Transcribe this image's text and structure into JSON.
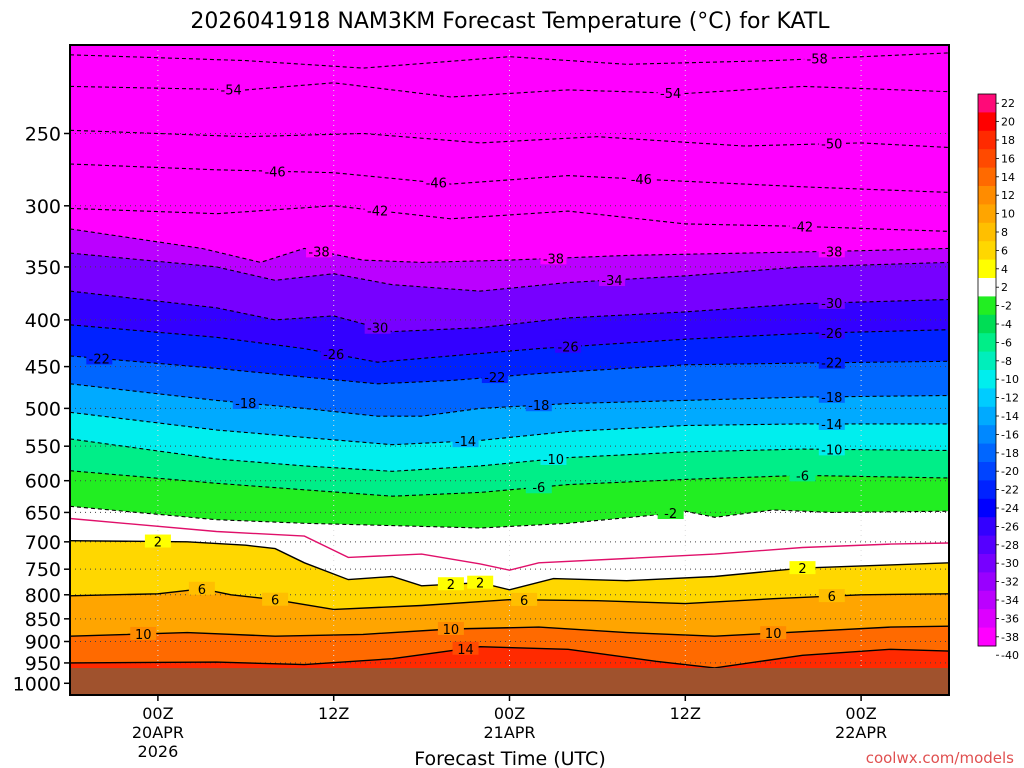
{
  "chart_data": {
    "type": "heatmap",
    "title": "2026041918 NAM3KM Forecast Temperature (°C) for KATL",
    "xlabel": "Forecast Time (UTC)",
    "ylabel": "",
    "credit": "coolwx.com/models",
    "y_axis": {
      "scale": "log",
      "range_hpa": [
        1030,
        200
      ],
      "ticks": [
        "250",
        "300",
        "350",
        "400",
        "450",
        "500",
        "550",
        "600",
        "650",
        "700",
        "750",
        "800",
        "850",
        "900",
        "950",
        "1000"
      ],
      "tick_values": [
        250,
        300,
        350,
        400,
        450,
        500,
        550,
        600,
        650,
        700,
        750,
        800,
        850,
        900,
        950,
        1000
      ]
    },
    "x_axis": {
      "range_hours": [
        -6,
        54
      ],
      "ticks": [
        {
          "hour": 0,
          "line1": "00Z",
          "line2": "20APR",
          "line3": "2026"
        },
        {
          "hour": 12,
          "line1": "12Z",
          "line2": "",
          "line3": ""
        },
        {
          "hour": 24,
          "line1": "00Z",
          "line2": "21APR",
          "line3": ""
        },
        {
          "hour": 36,
          "line1": "12Z",
          "line2": "",
          "line3": ""
        },
        {
          "hour": 48,
          "line1": "00Z",
          "line2": "22APR",
          "line3": ""
        }
      ]
    },
    "colorbar": {
      "levels": [
        "22",
        "20",
        "18",
        "16",
        "14",
        "12",
        "10",
        "8",
        "6",
        "4",
        "2",
        "-2",
        "-4",
        "-6",
        "-8",
        "-10",
        "-12",
        "-14",
        "-16",
        "-18",
        "-20",
        "-22",
        "-24",
        "-26",
        "-28",
        "-30",
        "-32",
        "-34",
        "-36",
        "-38",
        "-40"
      ],
      "colors": [
        "#ff0a78",
        "#ff0000",
        "#ff2a00",
        "#ff4a00",
        "#ff6a00",
        "#ff8c00",
        "#ffa500",
        "#ffbf00",
        "#ffd700",
        "#ffff00",
        "#ffffff",
        "#22ee22",
        "#00dd55",
        "#00ee88",
        "#00eebb",
        "#00eeee",
        "#00ccff",
        "#00aaff",
        "#0088ff",
        "#0066ff",
        "#0044ff",
        "#0022ff",
        "#0000ff",
        "#3300ff",
        "#5500ff",
        "#7700ff",
        "#9900ff",
        "#bb00ff",
        "#dd00ff",
        "#ff00ff"
      ]
    },
    "ground_color": "#a0522d",
    "isotherms": [
      {
        "temp": -58,
        "label": "-58",
        "pts": [
          [
            -6,
            205
          ],
          [
            6,
            208
          ],
          [
            14,
            212
          ],
          [
            24,
            206
          ],
          [
            32,
            210
          ],
          [
            42,
            208
          ],
          [
            54,
            204
          ]
        ]
      },
      {
        "temp": -54,
        "label": "-54",
        "pts": [
          [
            -6,
            222
          ],
          [
            6,
            224
          ],
          [
            12,
            220
          ],
          [
            20,
            228
          ],
          [
            28,
            224
          ],
          [
            36,
            226
          ],
          [
            44,
            222
          ],
          [
            54,
            225
          ]
        ]
      },
      {
        "temp": -50,
        "label": "-50",
        "pts": [
          [
            -6,
            248
          ],
          [
            6,
            252
          ],
          [
            14,
            250
          ],
          [
            22,
            256
          ],
          [
            30,
            252
          ],
          [
            40,
            258
          ],
          [
            48,
            256
          ],
          [
            54,
            259
          ]
        ]
      },
      {
        "temp": -46,
        "label": "-46",
        "pts": [
          [
            -6,
            270
          ],
          [
            4,
            274
          ],
          [
            12,
            276
          ],
          [
            20,
            284
          ],
          [
            28,
            278
          ],
          [
            36,
            282
          ],
          [
            44,
            286
          ],
          [
            54,
            290
          ]
        ]
      },
      {
        "temp": -42,
        "label": "-42",
        "pts": [
          [
            -6,
            302
          ],
          [
            4,
            306
          ],
          [
            12,
            300
          ],
          [
            20,
            310
          ],
          [
            28,
            304
          ],
          [
            36,
            314
          ],
          [
            44,
            316
          ],
          [
            54,
            320
          ]
        ]
      },
      {
        "temp": -38,
        "label": "-38",
        "pts": [
          [
            -6,
            318
          ],
          [
            3,
            334
          ],
          [
            7,
            346
          ],
          [
            10,
            334
          ],
          [
            14,
            344
          ],
          [
            18,
            346
          ],
          [
            24,
            344
          ],
          [
            32,
            340
          ],
          [
            40,
            338
          ],
          [
            48,
            336
          ],
          [
            54,
            334
          ]
        ]
      },
      {
        "temp": -34,
        "label": "-34",
        "pts": [
          [
            -6,
            338
          ],
          [
            4,
            350
          ],
          [
            8,
            362
          ],
          [
            12,
            356
          ],
          [
            16,
            366
          ],
          [
            22,
            372
          ],
          [
            28,
            364
          ],
          [
            36,
            358
          ],
          [
            44,
            350
          ],
          [
            54,
            346
          ]
        ]
      },
      {
        "temp": -30,
        "label": "-30",
        "pts": [
          [
            -6,
            372
          ],
          [
            4,
            388
          ],
          [
            8,
            400
          ],
          [
            12,
            396
          ],
          [
            16,
            412
          ],
          [
            22,
            408
          ],
          [
            28,
            398
          ],
          [
            36,
            392
          ],
          [
            44,
            384
          ],
          [
            54,
            380
          ]
        ]
      },
      {
        "temp": -26,
        "label": "-26",
        "pts": [
          [
            -6,
            405
          ],
          [
            4,
            418
          ],
          [
            10,
            430
          ],
          [
            15,
            445
          ],
          [
            20,
            438
          ],
          [
            26,
            430
          ],
          [
            36,
            420
          ],
          [
            44,
            414
          ],
          [
            54,
            410
          ]
        ]
      },
      {
        "temp": -22,
        "label": "-22",
        "pts": [
          [
            -6,
            438
          ],
          [
            4,
            452
          ],
          [
            10,
            462
          ],
          [
            15,
            470
          ],
          [
            20,
            466
          ],
          [
            26,
            458
          ],
          [
            36,
            448
          ],
          [
            44,
            446
          ],
          [
            54,
            444
          ]
        ]
      },
      {
        "temp": -18,
        "label": "-18",
        "pts": [
          [
            -6,
            470
          ],
          [
            4,
            490
          ],
          [
            10,
            500
          ],
          [
            15,
            510
          ],
          [
            18,
            510
          ],
          [
            22,
            500
          ],
          [
            28,
            494
          ],
          [
            36,
            490
          ],
          [
            44,
            486
          ],
          [
            54,
            484
          ]
        ]
      },
      {
        "temp": -14,
        "label": "-14",
        "pts": [
          [
            -6,
            505
          ],
          [
            4,
            528
          ],
          [
            10,
            538
          ],
          [
            16,
            548
          ],
          [
            22,
            542
          ],
          [
            28,
            530
          ],
          [
            36,
            522
          ],
          [
            44,
            520
          ],
          [
            54,
            520
          ]
        ]
      },
      {
        "temp": -10,
        "label": "-10",
        "pts": [
          [
            -6,
            540
          ],
          [
            4,
            568
          ],
          [
            10,
            578
          ],
          [
            16,
            586
          ],
          [
            22,
            578
          ],
          [
            28,
            566
          ],
          [
            36,
            558
          ],
          [
            44,
            554
          ],
          [
            54,
            556
          ]
        ]
      },
      {
        "temp": -6,
        "label": "-6",
        "pts": [
          [
            -6,
            585
          ],
          [
            4,
            604
          ],
          [
            10,
            614
          ],
          [
            16,
            624
          ],
          [
            22,
            618
          ],
          [
            28,
            606
          ],
          [
            36,
            598
          ],
          [
            44,
            592
          ],
          [
            54,
            596
          ]
        ]
      },
      {
        "temp": -2,
        "label": "-2",
        "pts": [
          [
            -6,
            640
          ],
          [
            4,
            662
          ],
          [
            10,
            668
          ],
          [
            16,
            672
          ],
          [
            22,
            676
          ],
          [
            28,
            668
          ],
          [
            34,
            654
          ],
          [
            36,
            648
          ],
          [
            38,
            658
          ],
          [
            42,
            646
          ],
          [
            46,
            650
          ],
          [
            54,
            648
          ]
        ]
      },
      {
        "temp": 2,
        "label": "2",
        "pts": [
          [
            -6,
            698
          ],
          [
            2,
            700
          ],
          [
            6,
            706
          ],
          [
            8,
            712
          ],
          [
            10,
            738
          ],
          [
            13,
            770
          ],
          [
            16,
            764
          ],
          [
            18,
            782
          ],
          [
            22,
            776
          ],
          [
            24,
            790
          ],
          [
            27,
            768
          ],
          [
            32,
            772
          ],
          [
            38,
            764
          ],
          [
            44,
            748
          ],
          [
            50,
            742
          ],
          [
            54,
            738
          ]
        ]
      },
      {
        "temp": 6,
        "label": "6",
        "pts": [
          [
            -6,
            802
          ],
          [
            0,
            798
          ],
          [
            3,
            788
          ],
          [
            5,
            800
          ],
          [
            8,
            810
          ],
          [
            12,
            830
          ],
          [
            18,
            822
          ],
          [
            24,
            810
          ],
          [
            30,
            812
          ],
          [
            36,
            818
          ],
          [
            42,
            808
          ],
          [
            48,
            800
          ],
          [
            54,
            798
          ]
        ]
      },
      {
        "temp": 10,
        "label": "10",
        "pts": [
          [
            -6,
            888
          ],
          [
            2,
            880
          ],
          [
            8,
            888
          ],
          [
            14,
            884
          ],
          [
            20,
            872
          ],
          [
            26,
            868
          ],
          [
            32,
            880
          ],
          [
            38,
            888
          ],
          [
            44,
            878
          ],
          [
            50,
            868
          ],
          [
            54,
            866
          ]
        ]
      },
      {
        "temp": 14,
        "label": "14",
        "pts": [
          [
            -6,
            950
          ],
          [
            4,
            948
          ],
          [
            10,
            954
          ],
          [
            16,
            940
          ],
          [
            22,
            912
          ],
          [
            28,
            918
          ],
          [
            34,
            946
          ],
          [
            38,
            962
          ],
          [
            44,
            932
          ],
          [
            50,
            918
          ],
          [
            54,
            922
          ]
        ]
      }
    ],
    "freezing_line": {
      "label": "0",
      "pts": [
        [
          -6,
          660
        ],
        [
          4,
          682
        ],
        [
          10,
          690
        ],
        [
          13,
          728
        ],
        [
          18,
          722
        ],
        [
          22,
          740
        ],
        [
          24,
          752
        ],
        [
          26,
          738
        ],
        [
          32,
          730
        ],
        [
          38,
          722
        ],
        [
          44,
          710
        ],
        [
          50,
          704
        ],
        [
          54,
          702
        ]
      ]
    },
    "label_positions": [
      {
        "temp": -58,
        "hours": [
          45
        ]
      },
      {
        "temp": -54,
        "hours": [
          5,
          35
        ]
      },
      {
        "temp": -50,
        "hours": [
          46
        ]
      },
      {
        "temp": -46,
        "hours": [
          8,
          19,
          33
        ]
      },
      {
        "temp": -42,
        "hours": [
          15,
          44
        ]
      },
      {
        "temp": -38,
        "hours": [
          11,
          27,
          46
        ]
      },
      {
        "temp": -34,
        "hours": [
          31
        ]
      },
      {
        "temp": -30,
        "hours": [
          15,
          46
        ]
      },
      {
        "temp": -26,
        "hours": [
          12,
          28,
          46
        ]
      },
      {
        "temp": -22,
        "hours": [
          -4,
          23,
          46
        ]
      },
      {
        "temp": -18,
        "hours": [
          6,
          26,
          46
        ]
      },
      {
        "temp": -14,
        "hours": [
          21,
          46
        ]
      },
      {
        "temp": -10,
        "hours": [
          27,
          46
        ]
      },
      {
        "temp": -6,
        "hours": [
          26,
          44
        ]
      },
      {
        "temp": -2,
        "hours": [
          35
        ]
      },
      {
        "temp": 2,
        "hours": [
          0,
          20,
          22,
          44
        ]
      },
      {
        "temp": 6,
        "hours": [
          3,
          8,
          25,
          46
        ]
      },
      {
        "temp": 10,
        "hours": [
          -1,
          20,
          42
        ]
      },
      {
        "temp": 14,
        "hours": [
          21
        ]
      }
    ]
  }
}
